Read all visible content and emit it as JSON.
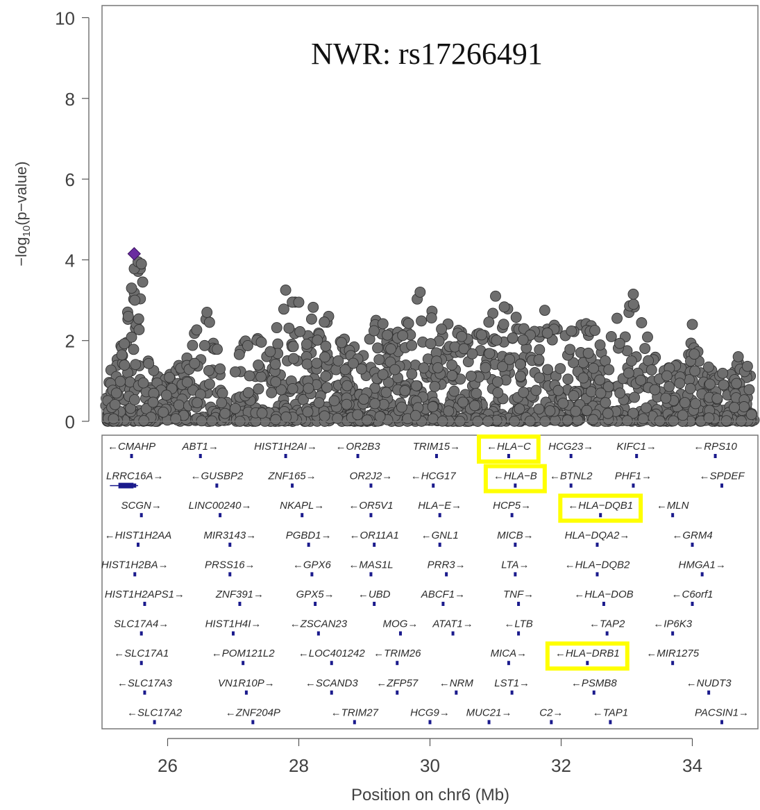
{
  "chart_data": {
    "type": "scatter",
    "title": "NWR: rs17266491",
    "xlabel": "Position on chr6 (Mb)",
    "ylabel": "-log10(p-value)",
    "ylabel_parts": {
      "prefix": "−log",
      "sub": "10",
      "suffix": "(p−value)"
    },
    "xlim": [
      25.0,
      35.0
    ],
    "ylim": [
      0,
      10.3
    ],
    "x_ticks": [
      26,
      28,
      30,
      32,
      34
    ],
    "y_ticks": [
      0,
      2,
      4,
      6,
      8,
      10
    ],
    "grid": false,
    "point_color": "#6e6e6e",
    "lead_color": "#6a2ca0",
    "gene_color": "#1a1a8c",
    "highlight_color": "#ffff00",
    "lead_snp": {
      "x": 25.49,
      "y": 4.15,
      "name": "rs17266491"
    },
    "envelope": [
      [
        25.0,
        1.5
      ],
      [
        25.2,
        1.4
      ],
      [
        25.35,
        2.3
      ],
      [
        25.45,
        3.3
      ],
      [
        25.5,
        3.9
      ],
      [
        25.6,
        3.9
      ],
      [
        25.7,
        1.6
      ],
      [
        25.9,
        1.0
      ],
      [
        26.2,
        1.5
      ],
      [
        26.5,
        2.5
      ],
      [
        26.65,
        2.7
      ],
      [
        26.8,
        1.5
      ],
      [
        26.95,
        0.3
      ],
      [
        27.1,
        2.4
      ],
      [
        27.3,
        2.4
      ],
      [
        27.5,
        2.1
      ],
      [
        27.7,
        2.5
      ],
      [
        27.8,
        3.25
      ],
      [
        28.0,
        3.0
      ],
      [
        28.2,
        2.9
      ],
      [
        28.4,
        2.7
      ],
      [
        28.7,
        2.2
      ],
      [
        29.0,
        1.6
      ],
      [
        29.2,
        2.7
      ],
      [
        29.5,
        2.4
      ],
      [
        29.8,
        3.2
      ],
      [
        30.0,
        2.8
      ],
      [
        30.2,
        2.5
      ],
      [
        30.5,
        2.2
      ],
      [
        30.8,
        2.4
      ],
      [
        31.0,
        3.1
      ],
      [
        31.3,
        2.6
      ],
      [
        31.6,
        2.6
      ],
      [
        31.8,
        2.7
      ],
      [
        32.0,
        2.2
      ],
      [
        32.3,
        2.5
      ],
      [
        32.6,
        2.3
      ],
      [
        32.85,
        2.6
      ],
      [
        33.1,
        3.15
      ],
      [
        33.3,
        2.2
      ],
      [
        33.5,
        1.5
      ],
      [
        33.8,
        1.5
      ],
      [
        34.0,
        2.4
      ],
      [
        34.2,
        1.4
      ],
      [
        34.5,
        1.2
      ],
      [
        34.7,
        1.6
      ],
      [
        34.85,
        1.4
      ],
      [
        35.0,
        1.0
      ]
    ],
    "peaks": [
      {
        "x": 25.45,
        "y": 3.3
      },
      {
        "x": 25.5,
        "y": 3.0
      },
      {
        "x": 25.55,
        "y": 3.95
      },
      {
        "x": 25.6,
        "y": 3.9
      },
      {
        "x": 25.62,
        "y": 3.45
      },
      {
        "x": 25.4,
        "y": 2.6
      },
      {
        "x": 26.6,
        "y": 2.7
      },
      {
        "x": 27.8,
        "y": 3.25
      },
      {
        "x": 28.0,
        "y": 2.95
      },
      {
        "x": 29.85,
        "y": 3.2
      },
      {
        "x": 31.0,
        "y": 3.1
      },
      {
        "x": 31.75,
        "y": 2.75
      },
      {
        "x": 33.1,
        "y": 3.15
      },
      {
        "x": 34.0,
        "y": 2.4
      },
      {
        "x": 34.7,
        "y": 1.6
      }
    ],
    "n_points": 1500,
    "genes": [
      {
        "label": "←CMAHP",
        "row": 0,
        "x": 25.45,
        "hl": false
      },
      {
        "label": "ABT1→",
        "row": 0,
        "x": 26.5,
        "hl": false
      },
      {
        "label": "HIST1H2AI→",
        "row": 0,
        "x": 27.8,
        "hl": false
      },
      {
        "label": "←OR2B3",
        "row": 0,
        "x": 28.9,
        "hl": false
      },
      {
        "label": "TRIM15→",
        "row": 0,
        "x": 30.1,
        "hl": false
      },
      {
        "label": "←HLA−C",
        "row": 0,
        "x": 31.2,
        "hl": true
      },
      {
        "label": "HCG23→",
        "row": 0,
        "x": 32.15,
        "hl": false
      },
      {
        "label": "KIFC1→",
        "row": 0,
        "x": 33.15,
        "hl": false
      },
      {
        "label": "←RPS10",
        "row": 0,
        "x": 34.35,
        "hl": false
      },
      {
        "label": "LRRC16A→",
        "row": 1,
        "x": 25.5,
        "hl": false
      },
      {
        "label": "←GUSBP2",
        "row": 1,
        "x": 26.75,
        "hl": false
      },
      {
        "label": "ZNF165→",
        "row": 1,
        "x": 27.9,
        "hl": false
      },
      {
        "label": "OR2J2→",
        "row": 1,
        "x": 29.1,
        "hl": false
      },
      {
        "label": "←HCG17",
        "row": 1,
        "x": 30.05,
        "hl": false
      },
      {
        "label": "←HLA−B",
        "row": 1,
        "x": 31.3,
        "hl": true
      },
      {
        "label": "←BTNL2",
        "row": 1,
        "x": 32.15,
        "hl": false
      },
      {
        "label": "PHF1→",
        "row": 1,
        "x": 33.1,
        "hl": false
      },
      {
        "label": "←SPDEF",
        "row": 1,
        "x": 34.45,
        "hl": false
      },
      {
        "label": "SCGN→",
        "row": 2,
        "x": 25.6,
        "hl": false
      },
      {
        "label": "LINC00240→",
        "row": 2,
        "x": 26.8,
        "hl": false
      },
      {
        "label": "NKAPL→",
        "row": 2,
        "x": 28.05,
        "hl": false
      },
      {
        "label": "←OR5V1",
        "row": 2,
        "x": 29.1,
        "hl": false
      },
      {
        "label": "HLA−E→",
        "row": 2,
        "x": 30.15,
        "hl": false
      },
      {
        "label": "HCP5→",
        "row": 2,
        "x": 31.25,
        "hl": false
      },
      {
        "label": "←HLA−DQB1",
        "row": 2,
        "x": 32.6,
        "hl": true
      },
      {
        "label": "←MLN",
        "row": 2,
        "x": 33.7,
        "hl": false
      },
      {
        "label": "←HIST1H2AA",
        "row": 3,
        "x": 25.55,
        "hl": false
      },
      {
        "label": "MIR3143→",
        "row": 3,
        "x": 26.95,
        "hl": false
      },
      {
        "label": "PGBD1→",
        "row": 3,
        "x": 28.15,
        "hl": false
      },
      {
        "label": "←OR11A1",
        "row": 3,
        "x": 29.15,
        "hl": false
      },
      {
        "label": "←GNL1",
        "row": 3,
        "x": 30.15,
        "hl": false
      },
      {
        "label": "MICB→",
        "row": 3,
        "x": 31.3,
        "hl": false
      },
      {
        "label": "HLA−DQA2→",
        "row": 3,
        "x": 32.55,
        "hl": false
      },
      {
        "label": "←GRM4",
        "row": 3,
        "x": 34.0,
        "hl": false
      },
      {
        "label": "HIST1H2BA→",
        "row": 4,
        "x": 25.5,
        "hl": false
      },
      {
        "label": "PRSS16→",
        "row": 4,
        "x": 26.95,
        "hl": false
      },
      {
        "label": "←GPX6",
        "row": 4,
        "x": 28.2,
        "hl": false
      },
      {
        "label": "←MAS1L",
        "row": 4,
        "x": 29.1,
        "hl": false
      },
      {
        "label": "PRR3→",
        "row": 4,
        "x": 30.25,
        "hl": false
      },
      {
        "label": "LTA→",
        "row": 4,
        "x": 31.3,
        "hl": false
      },
      {
        "label": "←HLA−DQB2",
        "row": 4,
        "x": 32.55,
        "hl": false
      },
      {
        "label": "HMGA1→",
        "row": 4,
        "x": 34.15,
        "hl": false
      },
      {
        "label": "HIST1H2APS1→",
        "row": 5,
        "x": 25.65,
        "hl": false
      },
      {
        "label": "ZNF391→",
        "row": 5,
        "x": 27.1,
        "hl": false
      },
      {
        "label": "GPX5→",
        "row": 5,
        "x": 28.25,
        "hl": false
      },
      {
        "label": "←UBD",
        "row": 5,
        "x": 29.15,
        "hl": false
      },
      {
        "label": "ABCF1→",
        "row": 5,
        "x": 30.2,
        "hl": false
      },
      {
        "label": "TNF→",
        "row": 5,
        "x": 31.35,
        "hl": false
      },
      {
        "label": "←HLA−DOB",
        "row": 5,
        "x": 32.65,
        "hl": false
      },
      {
        "label": "←C6orf1",
        "row": 5,
        "x": 34.0,
        "hl": false
      },
      {
        "label": "SLC17A4→",
        "row": 6,
        "x": 25.6,
        "hl": false
      },
      {
        "label": "HIST1H4I→",
        "row": 6,
        "x": 27.0,
        "hl": false
      },
      {
        "label": "←ZSCAN23",
        "row": 6,
        "x": 28.3,
        "hl": false
      },
      {
        "label": "MOG→",
        "row": 6,
        "x": 29.55,
        "hl": false
      },
      {
        "label": "ATAT1→",
        "row": 6,
        "x": 30.35,
        "hl": false
      },
      {
        "label": "←LTB",
        "row": 6,
        "x": 31.35,
        "hl": false
      },
      {
        "label": "←TAP2",
        "row": 6,
        "x": 32.7,
        "hl": false
      },
      {
        "label": "←IP6K3",
        "row": 6,
        "x": 33.7,
        "hl": false
      },
      {
        "label": "←SLC17A1",
        "row": 7,
        "x": 25.6,
        "hl": false
      },
      {
        "label": "←POM121L2",
        "row": 7,
        "x": 27.15,
        "hl": false
      },
      {
        "label": "←LOC401242",
        "row": 7,
        "x": 28.5,
        "hl": false
      },
      {
        "label": "←TRIM26",
        "row": 7,
        "x": 29.5,
        "hl": false
      },
      {
        "label": "MICA→",
        "row": 7,
        "x": 31.2,
        "hl": false
      },
      {
        "label": "←HLA−DRB1",
        "row": 7,
        "x": 32.4,
        "hl": true
      },
      {
        "label": "←MIR1275",
        "row": 7,
        "x": 33.7,
        "hl": false
      },
      {
        "label": "←SLC17A3",
        "row": 8,
        "x": 25.65,
        "hl": false
      },
      {
        "label": "VN1R10P→",
        "row": 8,
        "x": 27.2,
        "hl": false
      },
      {
        "label": "←SCAND3",
        "row": 8,
        "x": 28.5,
        "hl": false
      },
      {
        "label": "←ZFP57",
        "row": 8,
        "x": 29.5,
        "hl": false
      },
      {
        "label": "←NRM",
        "row": 8,
        "x": 30.4,
        "hl": false
      },
      {
        "label": "LST1→",
        "row": 8,
        "x": 31.25,
        "hl": false
      },
      {
        "label": "←PSMB8",
        "row": 8,
        "x": 32.5,
        "hl": false
      },
      {
        "label": "←NUDT3",
        "row": 8,
        "x": 34.25,
        "hl": false
      },
      {
        "label": "←SLC17A2",
        "row": 9,
        "x": 25.8,
        "hl": false
      },
      {
        "label": "←ZNF204P",
        "row": 9,
        "x": 27.3,
        "hl": false
      },
      {
        "label": "←TRIM27",
        "row": 9,
        "x": 28.85,
        "hl": false
      },
      {
        "label": "HCG9→",
        "row": 9,
        "x": 30.0,
        "hl": false
      },
      {
        "label": "MUC21→",
        "row": 9,
        "x": 30.9,
        "hl": false
      },
      {
        "label": "C2→",
        "row": 9,
        "x": 31.85,
        "hl": false
      },
      {
        "label": "←TAP1",
        "row": 9,
        "x": 32.75,
        "hl": false
      },
      {
        "label": "PACSIN1→",
        "row": 9,
        "x": 34.45,
        "hl": false
      }
    ]
  }
}
